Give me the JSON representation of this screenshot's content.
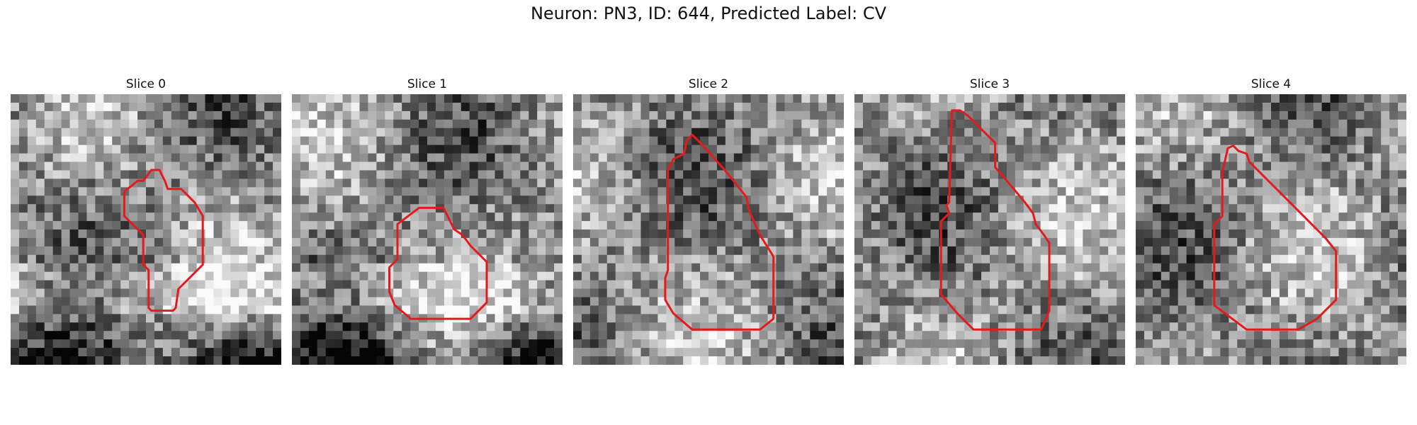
{
  "figure": {
    "title": "Neuron: PN3, ID: 644, Predicted Label: CV"
  },
  "panels": [
    {
      "title": "Slice 0",
      "seed": 11,
      "dark_bottom": true,
      "contour_color": "#e41a1c"
    },
    {
      "title": "Slice 1",
      "seed": 23,
      "dark_bottom": true,
      "contour_color": "#e41a1c"
    },
    {
      "title": "Slice 2",
      "seed": 37,
      "dark_bottom": false,
      "contour_color": "#e41a1c"
    },
    {
      "title": "Slice 3",
      "seed": 41,
      "dark_bottom": false,
      "contour_color": "#e41a1c"
    },
    {
      "title": "Slice 4",
      "seed": 53,
      "dark_bottom": false,
      "contour_color": "#e41a1c"
    }
  ],
  "colormap": "gray"
}
